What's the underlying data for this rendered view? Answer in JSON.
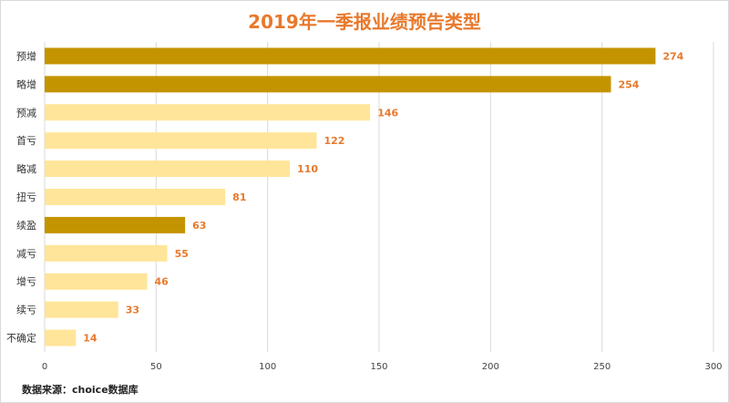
{
  "chart_data": {
    "type": "bar",
    "orientation": "horizontal",
    "title": "2019年一季报业绩预告类型",
    "categories": [
      "预增",
      "略增",
      "预减",
      "首亏",
      "略减",
      "扭亏",
      "续盈",
      "减亏",
      "增亏",
      "续亏",
      "不确定"
    ],
    "values": [
      274,
      254,
      146,
      122,
      110,
      81,
      63,
      55,
      46,
      33,
      14
    ],
    "bar_colors": [
      "#c49400",
      "#c49400",
      "#ffe599",
      "#ffe599",
      "#ffe599",
      "#ffe599",
      "#c49400",
      "#ffe599",
      "#ffe599",
      "#ffe599",
      "#ffe599"
    ],
    "x_ticks": [
      0,
      50,
      100,
      150,
      200,
      250,
      300
    ],
    "xlim": [
      0,
      300
    ],
    "grid": true,
    "legend": "none"
  },
  "source_note": "数据来源：choice数据库",
  "colors": {
    "accent": "#e8792c",
    "dark_bar": "#c49400",
    "light_bar": "#ffe599",
    "grid": "#d9d9d9"
  }
}
